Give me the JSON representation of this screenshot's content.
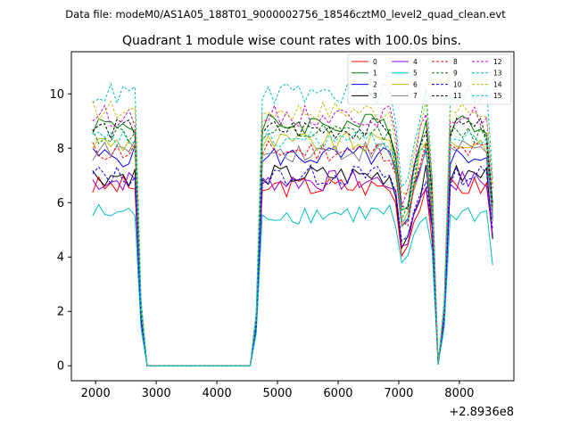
{
  "header": {
    "suptitle": "Data file: modeM0/AS1A05_188T01_9000002756_18546cztM0_level2_quad_clean.evt"
  },
  "chart_data": {
    "type": "line",
    "title": "Quadrant 1 module wise count rates with 100.0s bins.",
    "xlabel": "",
    "ylabel": "",
    "x_offset_label": "+2.8936e8",
    "xlim": [
      1600,
      8900
    ],
    "ylim": [
      -0.55,
      11.55
    ],
    "x_ticks": [
      2000,
      3000,
      4000,
      5000,
      6000,
      7000,
      8000
    ],
    "y_ticks": [
      0,
      2,
      4,
      6,
      8,
      10
    ],
    "grid": false,
    "legend_position": "top-right",
    "legend_columns": 4,
    "series": [
      {
        "name": "0",
        "color": "#ff0000",
        "style": "solid",
        "base": 6.6
      },
      {
        "name": "1",
        "color": "#008000",
        "style": "solid",
        "base": 8.9
      },
      {
        "name": "2",
        "color": "#0000ff",
        "style": "solid",
        "base": 7.7
      },
      {
        "name": "3",
        "color": "#000000",
        "style": "solid",
        "base": 7.0
      },
      {
        "name": "4",
        "color": "#9400d3",
        "style": "solid",
        "base": 6.8
      },
      {
        "name": "5",
        "color": "#00bfbf",
        "style": "solid",
        "base": 5.6
      },
      {
        "name": "6",
        "color": "#bfbf00",
        "style": "solid",
        "base": 8.2
      },
      {
        "name": "7",
        "color": "#808080",
        "style": "solid",
        "base": 7.9
      },
      {
        "name": "8",
        "color": "#ff0000",
        "style": "dashed",
        "base": 7.9
      },
      {
        "name": "9",
        "color": "#008000",
        "style": "dashed",
        "base": 8.5
      },
      {
        "name": "10",
        "color": "#0000ff",
        "style": "dashed",
        "base": 7.0
      },
      {
        "name": "11",
        "color": "#000000",
        "style": "dashed",
        "base": 8.7
      },
      {
        "name": "12",
        "color": "#cc00cc",
        "style": "dashed",
        "base": 9.2
      },
      {
        "name": "13",
        "color": "#00bfbf",
        "style": "dashed",
        "base": 10.0
      },
      {
        "name": "14",
        "color": "#bfbf00",
        "style": "dashed",
        "base": 9.4
      },
      {
        "name": "15",
        "color": "#00ced1",
        "style": "dashed",
        "base": 8.3
      }
    ]
  }
}
